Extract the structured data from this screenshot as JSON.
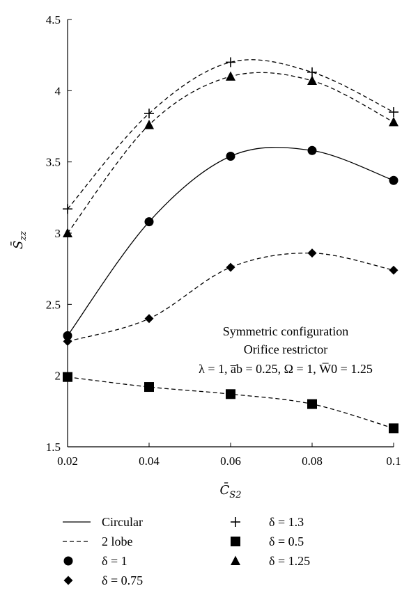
{
  "chart_data": {
    "type": "line",
    "title": "",
    "xlabel": "C̄S2",
    "ylabel": "S̄zz",
    "xlim": [
      0.02,
      0.1
    ],
    "ylim": [
      1.5,
      4.5
    ],
    "xticks": [
      0.02,
      0.04,
      0.06,
      0.08,
      0.1
    ],
    "xtick_labels": [
      "0.02",
      "0.04",
      "0.06",
      "0.08",
      "0.1"
    ],
    "yticks": [
      1.5,
      2,
      2.5,
      3,
      3.5,
      4,
      4.5
    ],
    "ytick_labels": [
      "1.5",
      "2",
      "2.5",
      "3",
      "3.5",
      "4",
      "4.5"
    ],
    "grid": false,
    "legend_position": "bottom",
    "annotation": [
      "Symmetric configuration",
      "Orifice restrictor",
      "λ = 1, a̅b = 0.25, Ω = 1, W̅0 = 1.25"
    ],
    "x": [
      0.02,
      0.04,
      0.06,
      0.08,
      0.1
    ],
    "series": [
      {
        "name": "δ = 1",
        "line": "Circular",
        "marker": "circle",
        "values": [
          2.28,
          3.08,
          3.54,
          3.58,
          3.37
        ]
      },
      {
        "name": "δ = 0.75",
        "line": "2 lobe",
        "marker": "diamond",
        "values": [
          2.24,
          2.4,
          2.76,
          2.86,
          2.74
        ]
      },
      {
        "name": "δ = 1.3",
        "line": "2 lobe",
        "marker": "plus",
        "values": [
          3.17,
          3.84,
          4.2,
          4.13,
          3.85
        ]
      },
      {
        "name": "δ = 0.5",
        "line": "2 lobe",
        "marker": "square",
        "values": [
          1.99,
          1.92,
          1.87,
          1.8,
          1.63
        ]
      },
      {
        "name": "δ = 1.25",
        "line": "2 lobe",
        "marker": "triangle",
        "values": [
          3.0,
          3.76,
          4.1,
          4.07,
          3.78
        ]
      }
    ],
    "legend": [
      {
        "label": "Circular",
        "symbol": "solid-line"
      },
      {
        "label": "2 lobe",
        "symbol": "dashed-line"
      },
      {
        "label": "δ = 1",
        "symbol": "circle"
      },
      {
        "label": "δ = 0.75",
        "symbol": "diamond"
      },
      {
        "label": "δ = 1.3",
        "symbol": "plus"
      },
      {
        "label": "δ = 0.5",
        "symbol": "square"
      },
      {
        "label": "δ = 1.25",
        "symbol": "triangle"
      }
    ]
  }
}
